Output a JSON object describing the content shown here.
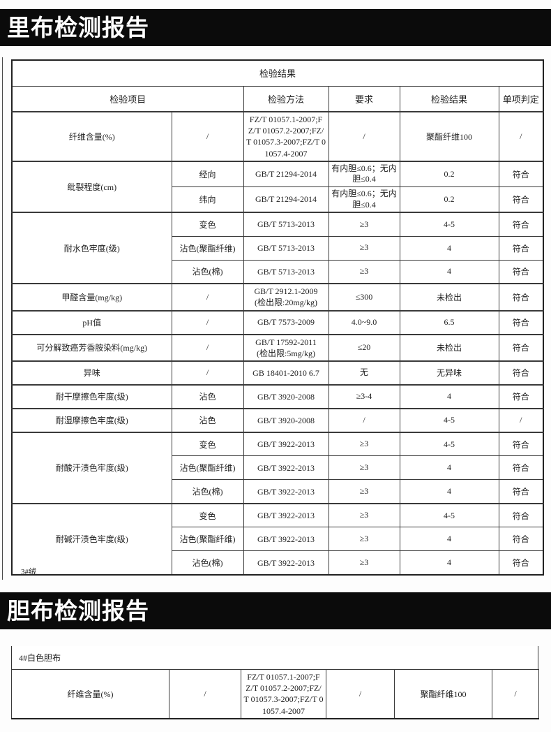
{
  "colors": {
    "banner_bg": "#0b0b0b",
    "banner_text": "#ffffff",
    "border": "#3a3a3a",
    "text": "#1f1f1f",
    "paper": "#ffffff"
  },
  "section1": {
    "banner": "里布检测报告",
    "table": {
      "title": "检验结果",
      "columns": [
        "检验项目",
        "检验方法",
        "要求",
        "检验结果",
        "单项判定"
      ],
      "rows": [
        {
          "item": "纤维含量(%)",
          "entries": [
            {
              "sub": "/",
              "method": "FZ/T 01057.1-2007;FZ/T 01057.2-2007;FZ/T 01057.3-2007;FZ/T 01057.4-2007",
              "req": "/",
              "result": "聚酯纤维100",
              "judge": "/"
            }
          ]
        },
        {
          "item": "纰裂程度(cm)",
          "entries": [
            {
              "sub": "经向",
              "method": "GB/T 21294-2014",
              "req": "有内胆≤0.6；无内胆≤0.4",
              "result": "0.2",
              "judge": "符合"
            },
            {
              "sub": "纬向",
              "method": "GB/T 21294-2014",
              "req": "有内胆≤0.6；无内胆≤0.4",
              "result": "0.2",
              "judge": "符合"
            }
          ]
        },
        {
          "item": "耐水色牢度(级)",
          "entries": [
            {
              "sub": "变色",
              "method": "GB/T 5713-2013",
              "req": "≥3",
              "result": "4-5",
              "judge": "符合"
            },
            {
              "sub": "沾色(聚酯纤维)",
              "method": "GB/T 5713-2013",
              "req": "≥3",
              "result": "4",
              "judge": "符合"
            },
            {
              "sub": "沾色(棉)",
              "method": "GB/T 5713-2013",
              "req": "≥3",
              "result": "4",
              "judge": "符合"
            }
          ]
        },
        {
          "item": "甲醛含量(mg/kg)",
          "entries": [
            {
              "sub": "/",
              "method": "GB/T 2912.1-2009\n(检出限:20mg/kg)",
              "req": "≤300",
              "result": "未检出",
              "judge": "符合"
            }
          ]
        },
        {
          "item": "pH值",
          "entries": [
            {
              "sub": "/",
              "method": "GB/T 7573-2009",
              "req": "4.0~9.0",
              "result": "6.5",
              "judge": "符合"
            }
          ]
        },
        {
          "item": "可分解致癌芳香胺染料(mg/kg)",
          "entries": [
            {
              "sub": "/",
              "method": "GB/T 17592-2011\n(检出限:5mg/kg)",
              "req": "≤20",
              "result": "未检出",
              "judge": "符合"
            }
          ]
        },
        {
          "item": "异味",
          "entries": [
            {
              "sub": "/",
              "method": "GB 18401-2010 6.7",
              "req": "无",
              "result": "无异味",
              "judge": "符合"
            }
          ]
        },
        {
          "item": "耐干摩擦色牢度(级)",
          "entries": [
            {
              "sub": "沾色",
              "method": "GB/T 3920-2008",
              "req": "≥3-4",
              "result": "4",
              "judge": "符合"
            }
          ]
        },
        {
          "item": "耐湿摩擦色牢度(级)",
          "entries": [
            {
              "sub": "沾色",
              "method": "GB/T 3920-2008",
              "req": "/",
              "result": "4-5",
              "judge": "/"
            }
          ]
        },
        {
          "item": "耐酸汗渍色牢度(级)",
          "entries": [
            {
              "sub": "变色",
              "method": "GB/T 3922-2013",
              "req": "≥3",
              "result": "4-5",
              "judge": "符合"
            },
            {
              "sub": "沾色(聚酯纤维)",
              "method": "GB/T 3922-2013",
              "req": "≥3",
              "result": "4",
              "judge": "符合"
            },
            {
              "sub": "沾色(棉)",
              "method": "GB/T 3922-2013",
              "req": "≥3",
              "result": "4",
              "judge": "符合"
            }
          ]
        },
        {
          "item": "耐碱汗渍色牢度(级)",
          "entries": [
            {
              "sub": "变色",
              "method": "GB/T 3922-2013",
              "req": "≥3",
              "result": "4-5",
              "judge": "符合"
            },
            {
              "sub": "沾色(聚酯纤维)",
              "method": "GB/T 3922-2013",
              "req": "≥3",
              "result": "4",
              "judge": "符合"
            },
            {
              "sub": "沾色(棉)",
              "method": "GB/T 3922-2013",
              "req": "≥3",
              "result": "4",
              "judge": "符合"
            }
          ]
        }
      ],
      "footer_note": "3#绒"
    }
  },
  "section2": {
    "banner": "胆布检测报告",
    "sample_label": "4#白色胆布",
    "row": {
      "item": "纤维含量(%)",
      "sub": "/",
      "method": "FZ/T 01057.1-2007;FZ/T 01057.2-2007;FZ/T 01057.3-2007;FZ/T 01057.4-2007",
      "req": "/",
      "result": "聚酯纤维100",
      "judge": "/"
    }
  }
}
